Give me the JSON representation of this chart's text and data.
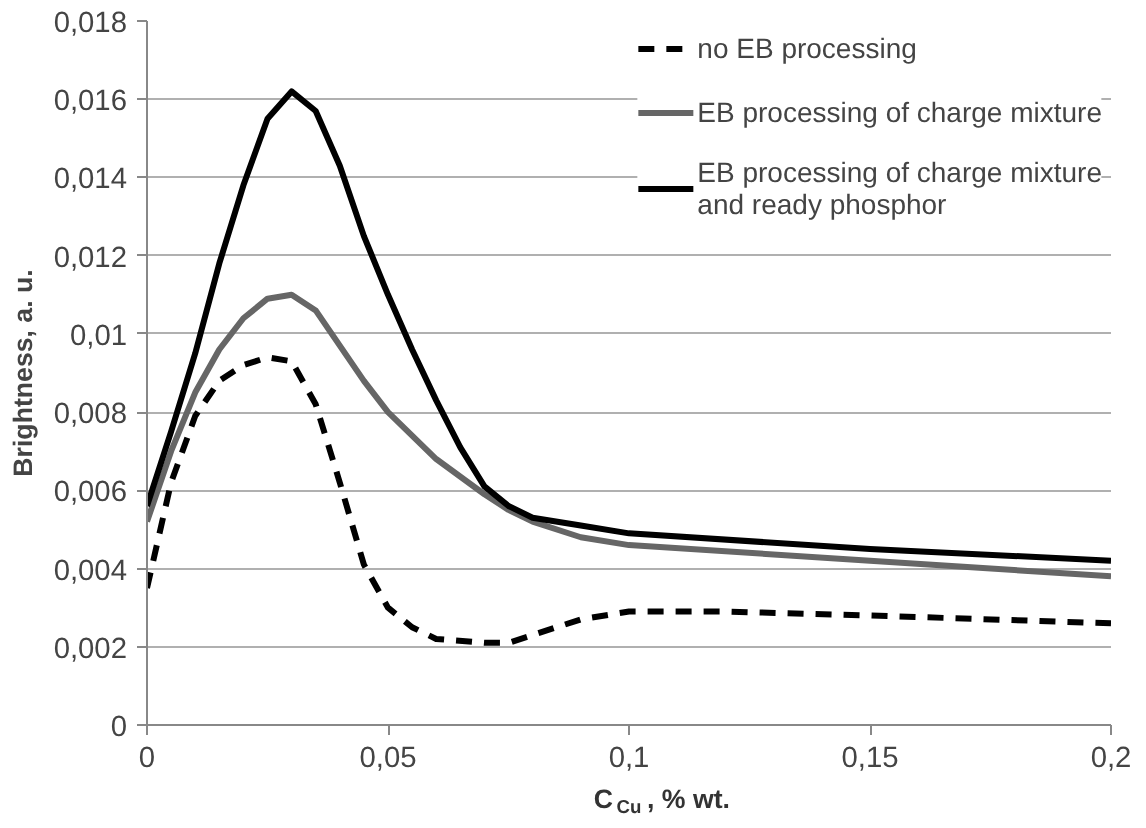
{
  "chart_data": {
    "type": "line",
    "xlabel": "C$_{Cu}$, % wt.",
    "ylabel": "Brightness, a. u.",
    "xlim": [
      0,
      0.2
    ],
    "xticks": [
      {
        "value": 0,
        "label": "0"
      },
      {
        "value": 0.05,
        "label": "0,05"
      },
      {
        "value": 0.1,
        "label": "0,1"
      },
      {
        "value": 0.15,
        "label": "0,15"
      },
      {
        "value": 0.2,
        "label": "0,2"
      }
    ],
    "ylim": [
      0,
      0.018
    ],
    "yticks": [
      {
        "value": 0,
        "label": "0"
      },
      {
        "value": 0.002,
        "label": "0,002"
      },
      {
        "value": 0.004,
        "label": "0,004"
      },
      {
        "value": 0.006,
        "label": "0,006"
      },
      {
        "value": 0.008,
        "label": "0,008"
      },
      {
        "value": 0.01,
        "label": "0,01"
      },
      {
        "value": 0.012,
        "label": "0,012"
      },
      {
        "value": 0.014,
        "label": "0,014"
      },
      {
        "value": 0.016,
        "label": "0,016"
      },
      {
        "value": 0.018,
        "label": "0,018"
      }
    ],
    "grid": "y",
    "legend": "top right",
    "marker": "none",
    "series": [
      {
        "name": "no EB processing",
        "color": "#000000",
        "line_style": "dashed",
        "x": [
          0,
          0.005,
          0.01,
          0.015,
          0.02,
          0.025,
          0.03,
          0.035,
          0.04,
          0.045,
          0.05,
          0.055,
          0.06,
          0.07,
          0.075,
          0.08,
          0.09,
          0.1,
          0.12,
          0.15,
          0.2
        ],
        "values": [
          0.0035,
          0.0062,
          0.0079,
          0.0088,
          0.0092,
          0.0094,
          0.0093,
          0.0082,
          0.0062,
          0.0041,
          0.003,
          0.0025,
          0.0022,
          0.0021,
          0.0021,
          0.0023,
          0.0027,
          0.0029,
          0.0029,
          0.0028,
          0.0026
        ]
      },
      {
        "name": "EB processing of charge mixture",
        "color": "#666666",
        "line_style": "solid",
        "x": [
          0,
          0.005,
          0.01,
          0.015,
          0.02,
          0.025,
          0.03,
          0.035,
          0.04,
          0.045,
          0.05,
          0.06,
          0.07,
          0.075,
          0.08,
          0.09,
          0.1,
          0.15,
          0.2
        ],
        "values": [
          0.0052,
          0.007,
          0.0085,
          0.0096,
          0.0104,
          0.0109,
          0.011,
          0.0106,
          0.0097,
          0.0088,
          0.008,
          0.0068,
          0.0059,
          0.0055,
          0.0052,
          0.0048,
          0.0046,
          0.0042,
          0.0038
        ]
      },
      {
        "name": "EB processing of charge mixture and ready phosphor",
        "color": "#000000",
        "line_style": "solid",
        "x": [
          0,
          0.005,
          0.01,
          0.015,
          0.02,
          0.025,
          0.03,
          0.035,
          0.04,
          0.045,
          0.05,
          0.055,
          0.06,
          0.065,
          0.07,
          0.075,
          0.08,
          0.09,
          0.1,
          0.15,
          0.2
        ],
        "values": [
          0.0056,
          0.0075,
          0.0095,
          0.0118,
          0.0138,
          0.0155,
          0.0162,
          0.0157,
          0.0143,
          0.0125,
          0.011,
          0.0096,
          0.0083,
          0.0071,
          0.0061,
          0.0056,
          0.0053,
          0.0051,
          0.0049,
          0.0045,
          0.0042
        ]
      }
    ]
  }
}
